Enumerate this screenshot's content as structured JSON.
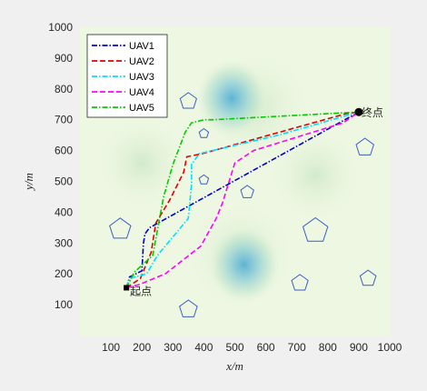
{
  "chart_data": {
    "type": "line",
    "xlabel": "x/m",
    "ylabel": "y/m",
    "xlim": [
      0,
      1000
    ],
    "ylim": [
      0,
      1000
    ],
    "xticks": [
      100,
      200,
      300,
      400,
      500,
      600,
      700,
      800,
      900,
      1000
    ],
    "yticks": [
      100,
      200,
      300,
      400,
      500,
      600,
      700,
      800,
      900,
      1000
    ],
    "grid": false,
    "legend_position": "top-left",
    "background_peaks": [
      {
        "x": 490,
        "y": 770,
        "color": "#5fb3d3"
      },
      {
        "x": 530,
        "y": 230,
        "color": "#5fb3d3"
      }
    ],
    "start": {
      "x": 150,
      "y": 155,
      "label": "起点"
    },
    "end": {
      "x": 900,
      "y": 725,
      "label": "终点"
    },
    "obstacles": [
      {
        "cx": 350,
        "cy": 760,
        "r": 28,
        "color": "#3b5fc0"
      },
      {
        "cx": 400,
        "cy": 655,
        "r": 16,
        "color": "#3b5fc0"
      },
      {
        "cx": 400,
        "cy": 505,
        "r": 16,
        "color": "#3b5fc0"
      },
      {
        "cx": 540,
        "cy": 465,
        "r": 22,
        "color": "#3b5fc0"
      },
      {
        "cx": 920,
        "cy": 610,
        "r": 30,
        "color": "#3b5fc0"
      },
      {
        "cx": 130,
        "cy": 345,
        "r": 36,
        "color": "#3b5fc0"
      },
      {
        "cx": 760,
        "cy": 340,
        "r": 42,
        "color": "#3b5fc0"
      },
      {
        "cx": 710,
        "cy": 170,
        "r": 28,
        "color": "#3b5fc0"
      },
      {
        "cx": 930,
        "cy": 185,
        "r": 27,
        "color": "#3b5fc0"
      },
      {
        "cx": 350,
        "cy": 85,
        "r": 30,
        "color": "#3b5fc0"
      }
    ],
    "series": [
      {
        "name": "UAV1",
        "color": "#0000c8",
        "dash": "dashdot",
        "x": [
          150,
          160,
          200,
          205,
          210,
          225,
          900
        ],
        "y": [
          155,
          190,
          210,
          300,
          330,
          350,
          725
        ]
      },
      {
        "name": "UAV2",
        "color": "#e00000",
        "dash": "dashed",
        "x": [
          150,
          195,
          230,
          245,
          290,
          335,
          345,
          395,
          860,
          900
        ],
        "y": [
          155,
          185,
          270,
          365,
          440,
          530,
          580,
          590,
          720,
          725
        ]
      },
      {
        "name": "UAV3",
        "color": "#00e0ff",
        "dash": "dashdot",
        "x": [
          150,
          160,
          215,
          250,
          350,
          360,
          360,
          385,
          640,
          900
        ],
        "y": [
          155,
          185,
          200,
          260,
          380,
          490,
          555,
          590,
          650,
          725
        ]
      },
      {
        "name": "UAV4",
        "color": "#ff00ff",
        "dash": "dashed",
        "x": [
          150,
          190,
          275,
          390,
          440,
          460,
          500,
          560,
          850,
          900
        ],
        "y": [
          155,
          165,
          200,
          290,
          380,
          430,
          560,
          600,
          690,
          725
        ]
      },
      {
        "name": "UAV5",
        "color": "#00cc00",
        "dash": "dashdot",
        "x": [
          150,
          175,
          235,
          270,
          300,
          340,
          360,
          400,
          430,
          900
        ],
        "y": [
          155,
          205,
          260,
          450,
          555,
          660,
          690,
          700,
          700,
          725
        ]
      }
    ]
  }
}
